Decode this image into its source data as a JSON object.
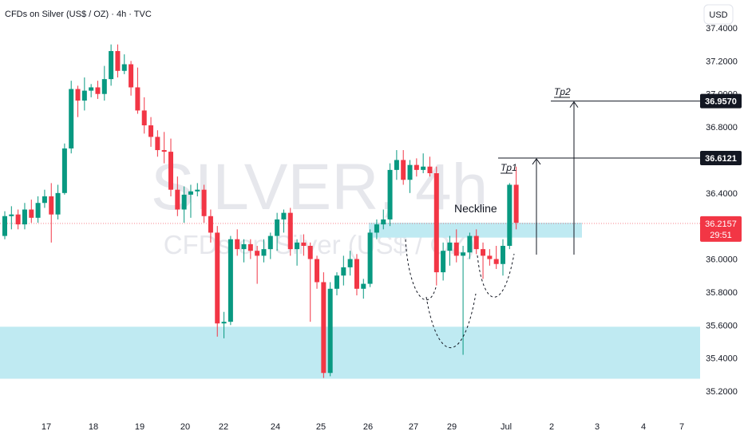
{
  "header": {
    "title": "CFDs on Silver (US$ / OZ) · 4h · TVC",
    "currency_button": "USD"
  },
  "watermark": {
    "symbol": "SILVER, 4h",
    "subtitle": "CFDs on Silver (US$ / OZ)"
  },
  "annotations": {
    "neckline": "Neckline",
    "tp1": "Tp1",
    "tp2": "Tp2"
  },
  "price_labels": {
    "tp2": "36.9570",
    "tp1": "36.6121",
    "last": "36.2157",
    "countdown": "29:51"
  },
  "colors": {
    "up": "#089981",
    "down": "#f23645",
    "zone": "#bfeaf2",
    "tp_label_bg": "#131722",
    "last_label_bg": "#f23645"
  },
  "chart_data": {
    "type": "candlestick",
    "y_ticks": [
      "37.4000",
      "37.2000",
      "37.0000",
      "36.8000",
      "36.6000",
      "36.4000",
      "36.2000",
      "36.0000",
      "35.8000",
      "35.6000",
      "35.4000",
      "35.2000"
    ],
    "y_range": [
      35.17,
      37.45
    ],
    "x_ticks": [
      "17",
      "18",
      "19",
      "20",
      "22",
      "24",
      "25",
      "26",
      "27",
      "29",
      "Jul",
      "2",
      "3",
      "4",
      "7"
    ],
    "demand_zone": [
      35.275,
      35.59
    ],
    "neckline_zone": [
      36.13,
      36.22
    ],
    "levels": {
      "tp1": 36.6121,
      "tp2": 36.957,
      "last": 36.2157
    },
    "candles": [
      [
        36.14,
        36.29,
        36.12,
        36.26
      ],
      [
        36.26,
        36.32,
        36.18,
        36.27
      ],
      [
        36.27,
        36.3,
        36.18,
        36.21
      ],
      [
        36.21,
        36.34,
        36.18,
        36.3
      ],
      [
        36.3,
        36.36,
        36.22,
        36.25
      ],
      [
        36.25,
        36.38,
        36.22,
        36.34
      ],
      [
        36.34,
        36.42,
        36.31,
        36.38
      ],
      [
        36.38,
        36.46,
        36.1,
        36.27
      ],
      [
        36.27,
        36.45,
        36.24,
        36.4
      ],
      [
        36.4,
        36.7,
        36.39,
        36.67
      ],
      [
        36.67,
        37.08,
        36.64,
        37.03
      ],
      [
        37.03,
        37.05,
        36.86,
        36.96
      ],
      [
        36.96,
        37.1,
        36.9,
        37.02
      ],
      [
        37.02,
        37.06,
        36.98,
        37.04
      ],
      [
        37.04,
        37.08,
        36.97,
        37.0
      ],
      [
        37.0,
        37.17,
        36.96,
        37.09
      ],
      [
        37.09,
        37.3,
        37.05,
        37.26
      ],
      [
        37.26,
        37.3,
        37.1,
        37.14
      ],
      [
        37.14,
        37.24,
        37.12,
        37.18
      ],
      [
        37.18,
        37.2,
        36.99,
        37.04
      ],
      [
        37.04,
        37.16,
        36.88,
        36.9
      ],
      [
        36.9,
        36.98,
        36.76,
        36.81
      ],
      [
        36.81,
        36.86,
        36.68,
        36.74
      ],
      [
        36.74,
        36.78,
        36.62,
        36.66
      ],
      [
        36.66,
        36.77,
        36.58,
        36.65
      ],
      [
        36.65,
        36.73,
        36.38,
        36.42
      ],
      [
        36.42,
        36.5,
        36.26,
        36.3
      ],
      [
        36.3,
        36.44,
        36.22,
        36.39
      ],
      [
        36.39,
        36.45,
        36.25,
        36.41
      ],
      [
        36.41,
        36.46,
        36.38,
        36.42
      ],
      [
        36.42,
        36.45,
        36.22,
        36.26
      ],
      [
        36.26,
        36.3,
        36.1,
        36.16
      ],
      [
        36.16,
        36.2,
        35.53,
        35.61
      ],
      [
        35.61,
        35.68,
        35.52,
        35.62
      ],
      [
        35.62,
        36.14,
        35.6,
        36.12
      ],
      [
        36.12,
        36.18,
        36.02,
        36.06
      ],
      [
        36.06,
        36.12,
        35.98,
        36.09
      ],
      [
        36.09,
        36.12,
        36.0,
        36.05
      ],
      [
        36.05,
        36.08,
        35.85,
        36.02
      ],
      [
        36.02,
        36.12,
        35.98,
        36.06
      ],
      [
        36.06,
        36.16,
        36.0,
        36.14
      ],
      [
        36.14,
        36.28,
        36.05,
        36.24
      ],
      [
        36.24,
        36.3,
        36.16,
        36.28
      ],
      [
        36.28,
        36.31,
        36.02,
        36.06
      ],
      [
        36.06,
        36.12,
        35.96,
        36.1
      ],
      [
        36.1,
        36.15,
        36.02,
        36.08
      ],
      [
        36.08,
        36.1,
        35.62,
        36.0
      ],
      [
        36.0,
        36.02,
        35.82,
        35.86
      ],
      [
        35.86,
        35.92,
        35.28,
        35.31
      ],
      [
        35.31,
        35.86,
        35.29,
        35.82
      ],
      [
        35.82,
        35.92,
        35.78,
        35.9
      ],
      [
        35.9,
        36.02,
        35.84,
        35.95
      ],
      [
        35.95,
        36.05,
        35.9,
        36.0
      ],
      [
        36.0,
        36.03,
        35.78,
        35.82
      ],
      [
        35.82,
        35.88,
        35.76,
        35.85
      ],
      [
        35.85,
        36.18,
        35.83,
        36.16
      ],
      [
        36.16,
        36.24,
        36.12,
        36.21
      ],
      [
        36.21,
        36.3,
        36.18,
        36.24
      ],
      [
        36.24,
        36.58,
        36.2,
        36.54
      ],
      [
        36.54,
        36.66,
        36.48,
        36.6
      ],
      [
        36.6,
        36.66,
        36.45,
        36.48
      ],
      [
        36.48,
        36.6,
        36.4,
        36.57
      ],
      [
        36.57,
        36.61,
        36.5,
        36.54
      ],
      [
        36.54,
        36.64,
        36.52,
        36.56
      ],
      [
        36.56,
        36.62,
        36.5,
        36.52
      ],
      [
        36.52,
        36.56,
        35.84,
        35.92
      ],
      [
        35.92,
        36.1,
        35.87,
        36.05
      ],
      [
        36.05,
        36.14,
        35.96,
        36.1
      ],
      [
        36.1,
        36.18,
        35.98,
        36.02
      ],
      [
        36.02,
        36.08,
        35.42,
        36.04
      ],
      [
        36.04,
        36.16,
        36.0,
        36.14
      ],
      [
        36.14,
        36.18,
        36.03,
        36.06
      ],
      [
        36.06,
        36.1,
        35.88,
        36.02
      ],
      [
        36.02,
        36.06,
        35.96,
        36.0
      ],
      [
        36.0,
        36.08,
        35.94,
        35.97
      ],
      [
        35.97,
        36.12,
        35.9,
        36.08
      ],
      [
        36.08,
        36.46,
        36.06,
        36.45
      ],
      [
        36.45,
        36.56,
        36.18,
        36.22
      ]
    ]
  }
}
